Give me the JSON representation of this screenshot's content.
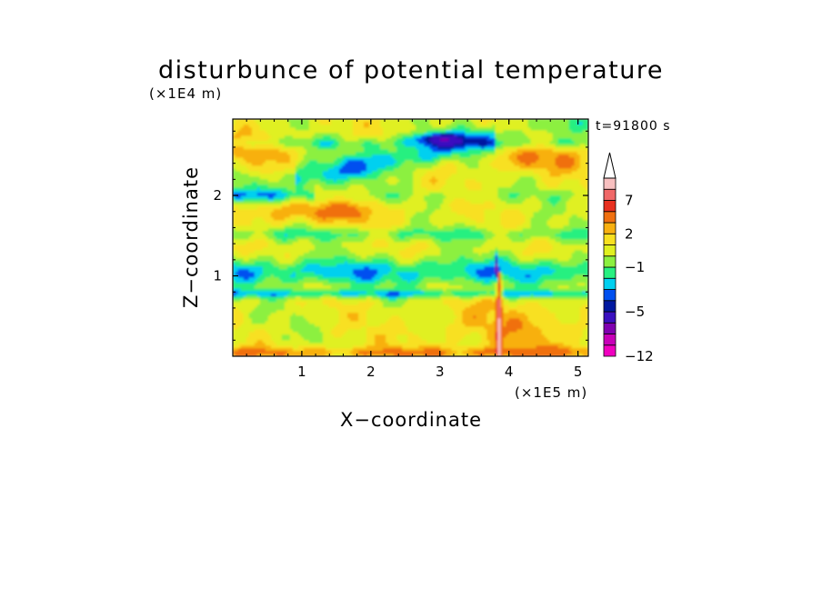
{
  "chart_data": {
    "type": "heatmap",
    "title": "disturbunce of potential temperature",
    "time_label": "t=91800 s",
    "xlabel": "X−coordinate",
    "ylabel": "Z−coordinate",
    "x_unit": "(×1E5 m)",
    "y_unit": "(×1E4 m)",
    "xlim": [
      0,
      5.15
    ],
    "ylim": [
      0,
      2.95
    ],
    "x_ticks": [
      1,
      2,
      3,
      4,
      5
    ],
    "y_ticks": [
      1,
      2
    ],
    "colorbar": {
      "levels": [
        -12,
        -10,
        -8,
        -7,
        -5,
        -4,
        -3,
        -2,
        -1,
        0,
        1,
        2,
        3,
        5,
        7,
        8,
        10
      ],
      "labeled": [
        "−12",
        "−5",
        "−1",
        "2",
        "7"
      ],
      "labeled_values": [
        -12,
        -5,
        -1,
        2,
        7
      ],
      "colors": [
        "#f000c0",
        "#c800b8",
        "#8000b0",
        "#3a10c0",
        "#0018a0",
        "#0050f0",
        "#00d0f0",
        "#28f080",
        "#8cf040",
        "#e0f020",
        "#f8e020",
        "#f8b010",
        "#f07010",
        "#e83020",
        "#f06868",
        "#f8c0c0"
      ],
      "extend": "max"
    },
    "features": [
      {
        "desc": "background",
        "value": 0.5
      },
      {
        "x": [
          0,
          5.15
        ],
        "z": [
          0.95,
          1.15
        ],
        "value": -1.5
      },
      {
        "x": [
          0,
          5.15
        ],
        "z": [
          1.45,
          1.6
        ],
        "value": -0.5
      },
      {
        "x": [
          0,
          5.15
        ],
        "z": [
          2.6,
          2.7
        ],
        "value": -0.5
      },
      {
        "x": [
          1.2,
          3.6
        ],
        "z": [
          2.15,
          2.55
        ],
        "value": -3
      },
      {
        "x": [
          2.7,
          3.4
        ],
        "z": [
          2.55,
          2.75
        ],
        "value": -4
      },
      {
        "x": [
          3.8,
          3.95
        ],
        "z": [
          0.0,
          1.2
        ],
        "value": 3
      }
    ]
  }
}
